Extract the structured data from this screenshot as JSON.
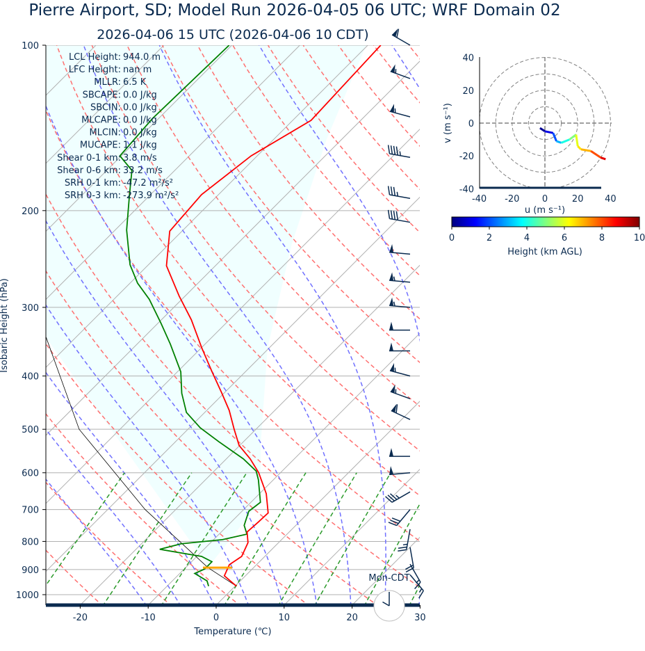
{
  "title": "Pierre Airport, SD; Model Run 2026-04-05 06 UTC; WRF Domain 02",
  "subtitle": "2026-04-06 15 UTC  (2026-04-06 10 CDT)",
  "stats": [
    {
      "label": "LCL Height:",
      "value": "944.0 m"
    },
    {
      "label": "LFC Height:",
      "value": "nan m"
    },
    {
      "label": "MLLR:",
      "value": "6.5 K"
    },
    {
      "label": "SBCAPE:",
      "value": "0.0 J/kg"
    },
    {
      "label": "SBCIN:",
      "value": "0.0 J/kg"
    },
    {
      "label": "MLCAPE:",
      "value": "0.0 J/kg"
    },
    {
      "label": "MLCIN:",
      "value": "0.0 J/kg"
    },
    {
      "label": "MUCAPE:",
      "value": "1.1 J/kg"
    },
    {
      "label": "Shear 0-1 km:",
      "value": "3.8 m/s"
    },
    {
      "label": "Shear 0-6 km:",
      "value": "33.2 m/s"
    },
    {
      "label": "SRH 0-1 km:",
      "value": "-47.2 m²/s²"
    },
    {
      "label": "SRH 0-3 km:",
      "value": "-273.9 m²/s²"
    }
  ],
  "timezone_label": "Mon-CDT",
  "clock_hour": 10,
  "chart_data": [
    {
      "type": "line",
      "name": "skew-t",
      "xlabel": "Temperature (℃)",
      "ylabel": "Isobaric Height (hPa)",
      "xlim": [
        -25,
        30
      ],
      "ylim": [
        1050,
        100
      ],
      "yscale": "log",
      "xticks": [
        -20,
        -10,
        0,
        10,
        20,
        30
      ],
      "yticks": [
        100,
        200,
        300,
        400,
        500,
        600,
        700,
        800,
        900,
        1000
      ],
      "colors": {
        "temperature": "#ff0000",
        "dewpoint": "#008000",
        "parcel": "#000000",
        "dry_adiabat": "#ff7070",
        "moist_adiabat": "#7070ff",
        "mixing_ratio": "#2a9a2a",
        "isotherm": "#b0b0b0",
        "shade": "#f0ffff",
        "lcl_marker": "#ffa500"
      },
      "temperature": {
        "p": [
          965,
          924,
          882,
          852,
          804,
          769,
          737,
          710,
          655,
          600,
          566,
          535,
          500,
          462,
          430,
          393,
          355,
          316,
          286,
          252,
          218,
          187,
          159,
          137,
          100
        ],
        "t": [
          0.2,
          -3.1,
          -4.0,
          -3.4,
          -4.5,
          -6.2,
          -6.0,
          -5.9,
          -9.0,
          -13.2,
          -16.5,
          -20.1,
          -23.2,
          -26.7,
          -30.3,
          -34.9,
          -40.0,
          -45.6,
          -50.9,
          -57.2,
          -61.8,
          -62.5,
          -60.9,
          -57.3,
          -58.1
        ]
      },
      "dewpoint": {
        "p": [
          965,
          944,
          915,
          898,
          871,
          852,
          827,
          808,
          794,
          776,
          748,
          705,
          679,
          618,
          596,
          566,
          527,
          497,
          466,
          430,
          393,
          350,
          321,
          290,
          271,
          251,
          217,
          187,
          169,
          159,
          136,
          100
        ],
        "t": [
          -3.9,
          -4.9,
          -7.8,
          -7.0,
          -7.0,
          -9.3,
          -16.5,
          -14.2,
          -8.7,
          -5.9,
          -7.6,
          -9.0,
          -8.6,
          -12.2,
          -13.8,
          -17.5,
          -23.6,
          -28.4,
          -32.7,
          -36.2,
          -39.5,
          -45.1,
          -49.5,
          -54.8,
          -58.9,
          -62.7,
          -68.3,
          -73.1,
          -76.3,
          -80.2,
          -80.9,
          -80.4
        ]
      },
      "parcel": {
        "p": [
          965,
          893,
          700,
          500,
          340
        ],
        "t": [
          0.2,
          -6.7,
          -24.5,
          -46,
          -64.4
        ]
      },
      "lcl_pressure": 893,
      "wind_barbs": {
        "p": [
          100,
          115,
          135,
          160,
          190,
          210,
          240,
          270,
          300,
          330,
          360,
          400,
          440,
          480,
          560,
          600,
          650,
          700,
          760,
          820,
          880,
          920
        ],
        "speed_kt": [
          60,
          55,
          55,
          45,
          35,
          40,
          50,
          55,
          55,
          50,
          50,
          55,
          55,
          60,
          50,
          50,
          35,
          30,
          25,
          20,
          15,
          15
        ],
        "direction_deg": [
          300,
          290,
          285,
          280,
          280,
          280,
          275,
          275,
          275,
          270,
          270,
          285,
          290,
          295,
          270,
          265,
          240,
          220,
          190,
          170,
          150,
          140
        ]
      }
    },
    {
      "type": "line",
      "name": "hodograph",
      "xlabel": "u (m s⁻¹)",
      "ylabel": "v (m s⁻¹)",
      "xlim": [
        -40,
        40
      ],
      "ylim": [
        -40,
        40
      ],
      "xticks": [
        -40,
        -20,
        0,
        20,
        40
      ],
      "yticks": [
        -40,
        -20,
        0,
        20,
        40
      ],
      "rings": [
        10,
        20,
        30,
        40
      ],
      "u": [
        -3,
        0,
        5,
        7,
        10,
        15,
        19,
        20,
        22,
        28,
        34,
        37
      ],
      "v": [
        -3,
        -5,
        -6,
        -11,
        -12,
        -10,
        -7,
        -14,
        -16,
        -17,
        -21,
        -22
      ],
      "height_km": [
        0.2,
        1,
        2,
        3,
        4,
        5,
        6,
        6.5,
        7,
        8,
        9,
        10
      ],
      "colorbar": {
        "label": "Height (km AGL)",
        "ticks": [
          0,
          2,
          4,
          6,
          8,
          10
        ],
        "range": [
          0,
          10
        ],
        "colormap": "jet"
      }
    }
  ]
}
